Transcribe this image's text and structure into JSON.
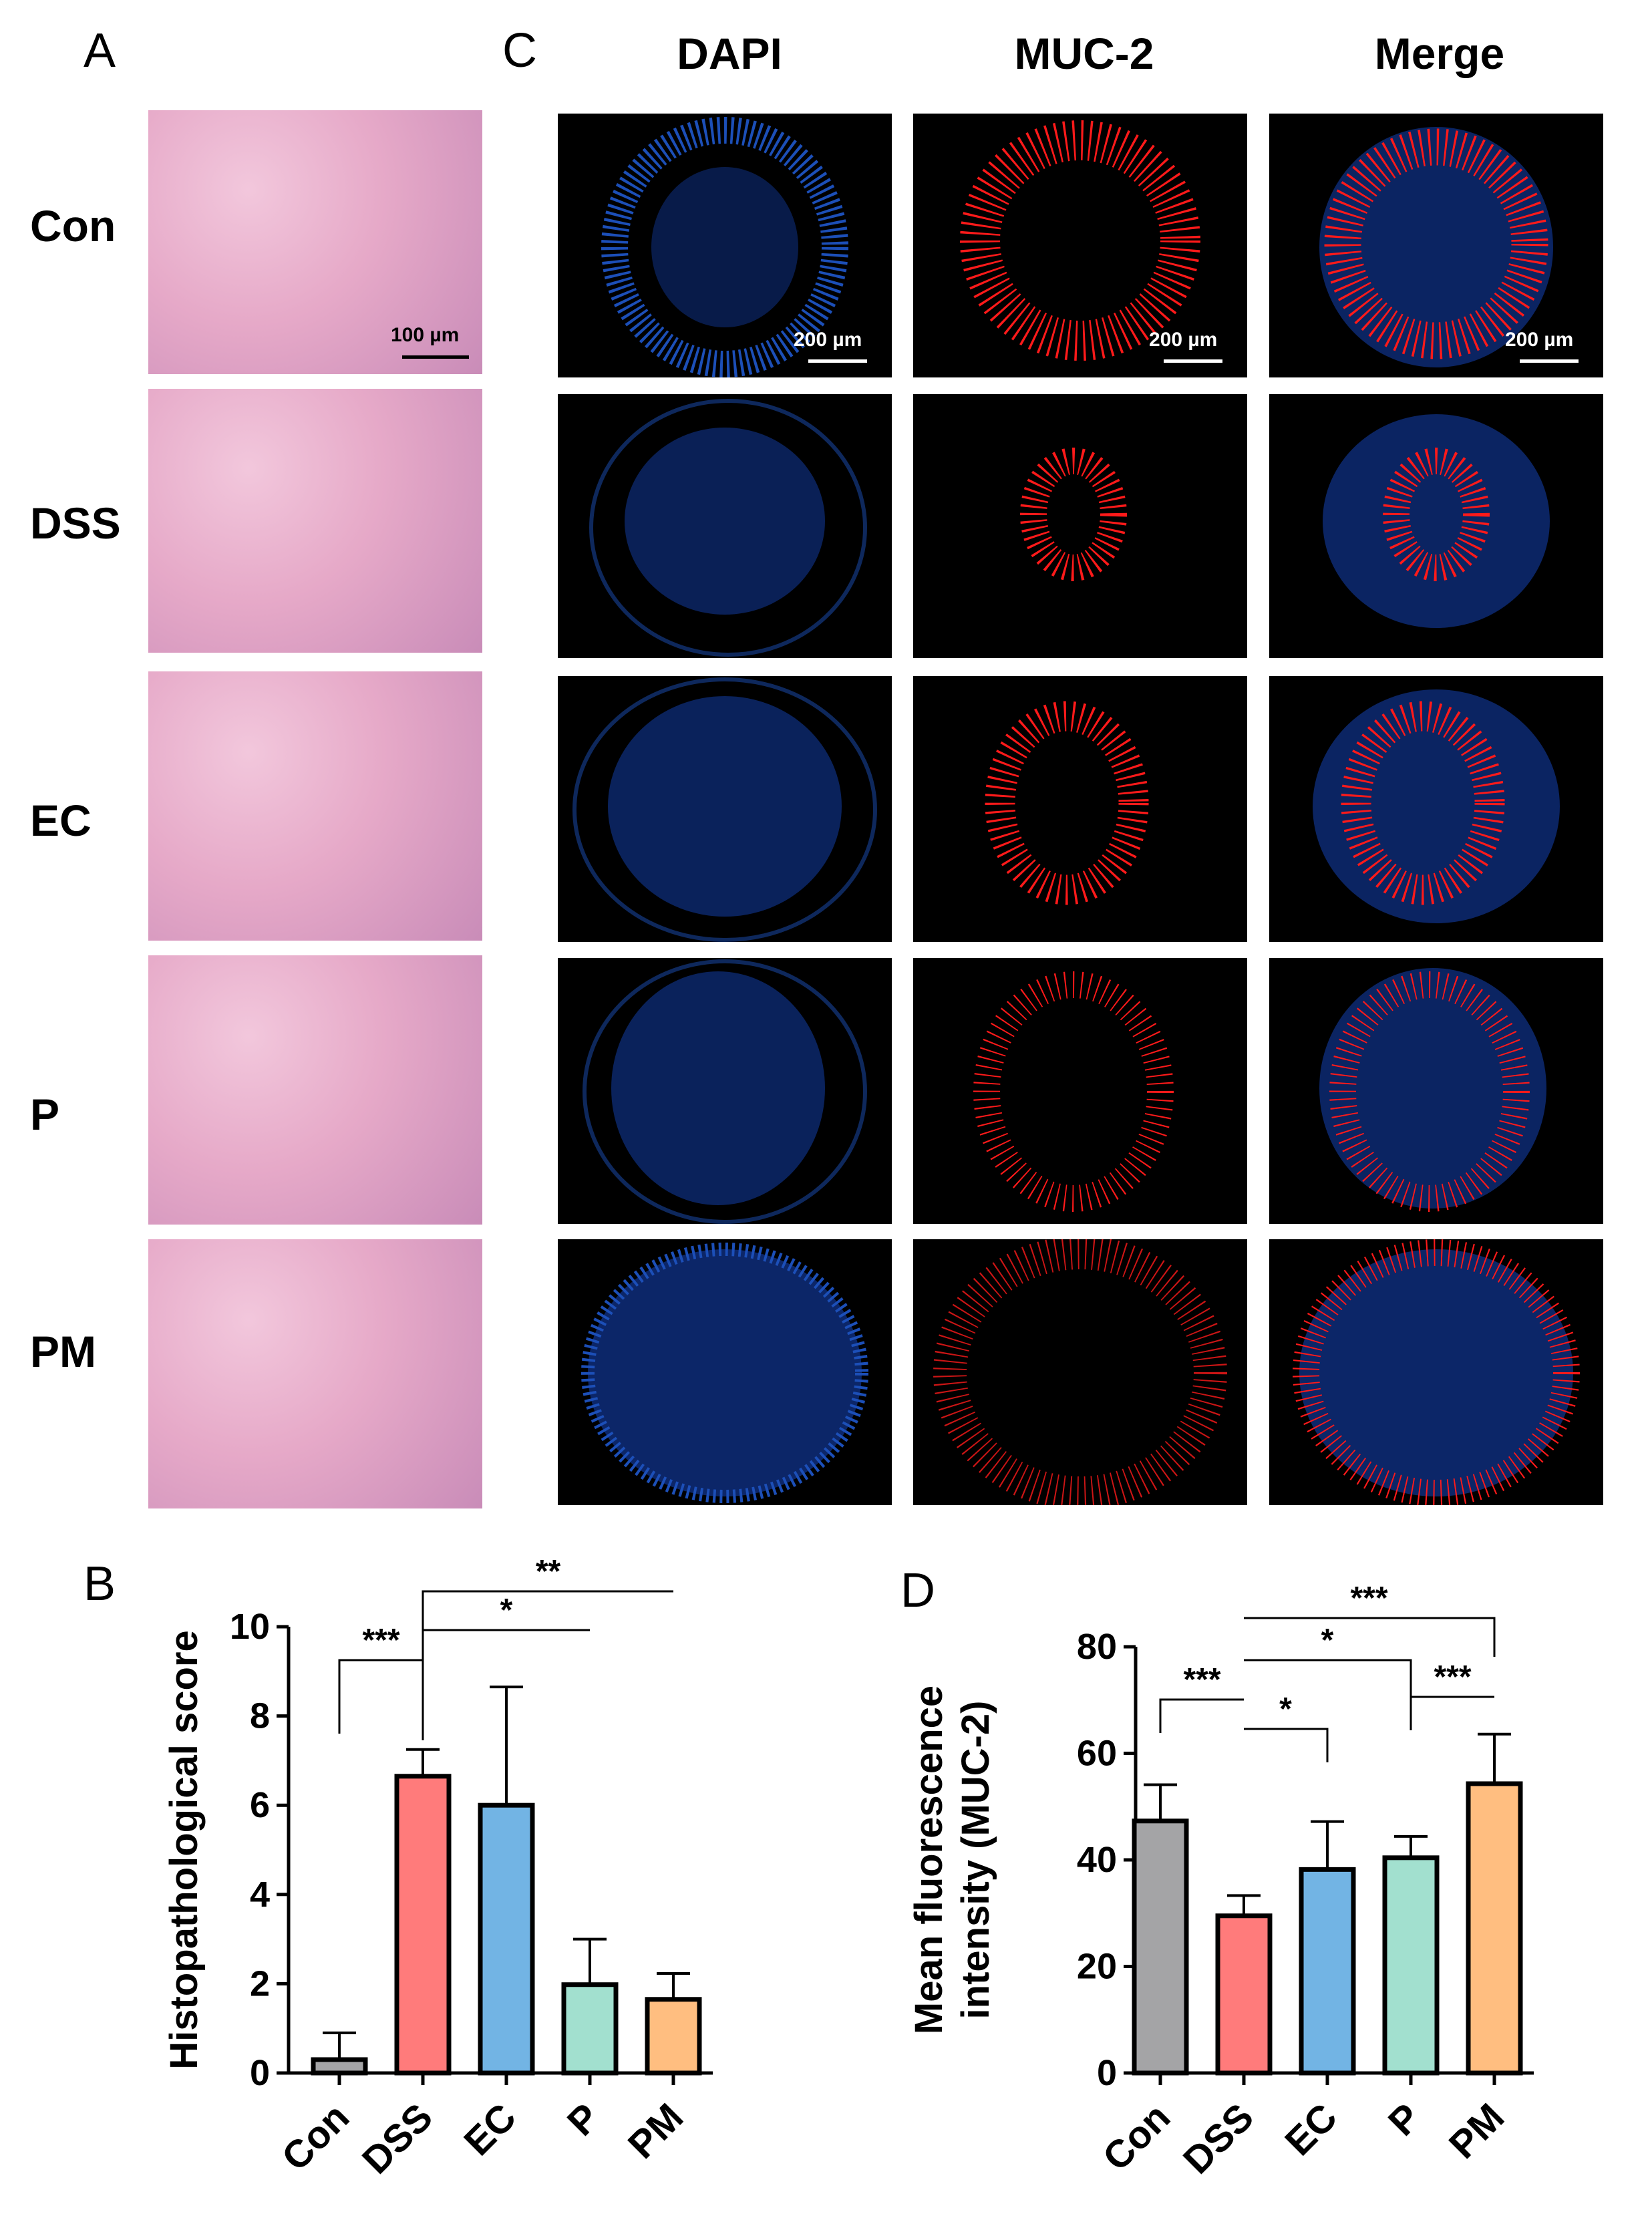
{
  "panels": {
    "A": "A",
    "B": "B",
    "C": "C",
    "D": "D"
  },
  "groups": [
    "Con",
    "DSS",
    "EC",
    "P",
    "PM"
  ],
  "columns": [
    "DAPI",
    "MUC-2",
    "Merge"
  ],
  "scalebars": {
    "he": "100 µm",
    "if": "200 µm"
  },
  "colors": {
    "Con": "#a4a4a6",
    "DSS": "#ff7b7b",
    "EC": "#72b4e4",
    "P": "#a2e0cf",
    "PM": "#ffbe80",
    "dapi": "#1c4fb8",
    "muc2": "#ff1a1a"
  },
  "chart_data": [
    {
      "type": "bar",
      "panel": "B",
      "categories": [
        "Con",
        "DSS",
        "EC",
        "P",
        "PM"
      ],
      "values": [
        0.3,
        6.65,
        6.0,
        1.98,
        1.65
      ],
      "errors": [
        0.6,
        0.6,
        2.65,
        1.02,
        0.58
      ],
      "ylabel": "Histopathological score",
      "ylim": [
        0,
        10
      ],
      "yticks": [
        0,
        2,
        4,
        6,
        8,
        10
      ],
      "significance": [
        {
          "from": "Con",
          "to": "DSS",
          "label": "***",
          "level": 1
        },
        {
          "from": "DSS",
          "to": "P",
          "label": "*",
          "level": 2
        },
        {
          "from": "DSS",
          "to": "PM",
          "label": "**",
          "level": 3
        }
      ]
    },
    {
      "type": "bar",
      "panel": "D",
      "categories": [
        "Con",
        "DSS",
        "EC",
        "P",
        "PM"
      ],
      "values": [
        47.3,
        29.5,
        38.2,
        40.4,
        54.3
      ],
      "errors": [
        6.8,
        3.8,
        9.0,
        4.0,
        9.3
      ],
      "ylabel": "Mean fluorescence\nintensity (MUC-2)",
      "ylim": [
        0,
        80
      ],
      "yticks": [
        0,
        20,
        40,
        60,
        80
      ],
      "significance": [
        {
          "from": "Con",
          "to": "DSS",
          "label": "***",
          "level": 1
        },
        {
          "from": "DSS",
          "to": "EC",
          "label": "*",
          "level": 0
        },
        {
          "from": "P",
          "to": "PM",
          "label": "***",
          "level": 2
        },
        {
          "from": "DSS",
          "to": "P",
          "label": "*",
          "level": 3
        },
        {
          "from": "DSS",
          "to": "PM",
          "label": "***",
          "level": 4
        }
      ]
    }
  ]
}
